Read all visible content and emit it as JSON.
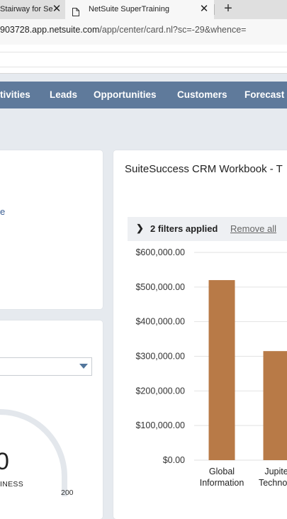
{
  "browser": {
    "tabs": [
      {
        "title": "Stairway for Se",
        "active": false
      },
      {
        "title": "NetSuite SuperTraining",
        "active": true
      }
    ],
    "url_host": "903728.app.netsuite.com",
    "url_path": "/app/center/card.nl?sc=-29&whence="
  },
  "nav": {
    "items": [
      "tivities",
      "Leads",
      "Opportunities",
      "Customers",
      "Forecast"
    ]
  },
  "left_panel": {
    "link_fragment": "e",
    "gauge_value": "0",
    "gauge_caption": "INESS",
    "gauge_max": "200"
  },
  "chart_portlet": {
    "title": "SuiteSuccess CRM Workbook - T",
    "filters_text": "2 filters applied",
    "remove_label": "Remove all"
  },
  "chart_data": {
    "type": "bar",
    "categories": [
      [
        "Global",
        "Information"
      ],
      [
        "Jupite",
        "Technolo"
      ]
    ],
    "values": [
      520000,
      315000
    ],
    "ylim": [
      0,
      600000
    ],
    "yticks": [
      "$600,000.00",
      "$500,000.00",
      "$400,000.00",
      "$300,000.00",
      "$200,000.00",
      "$100,000.00",
      "$0.00"
    ],
    "bar_color": "#b87a47",
    "grid": true
  },
  "colors": {
    "nav_bg": "#5f7a9b",
    "page_bg": "#e6eaef",
    "link": "#3a5f93"
  }
}
